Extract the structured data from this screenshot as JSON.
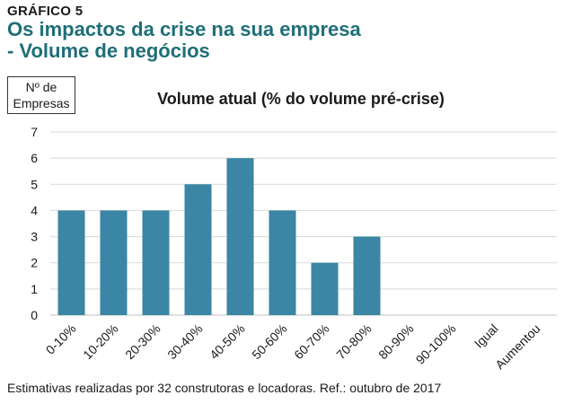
{
  "header": {
    "kicker": "GRÁFICO 5",
    "title_line1": "Os impactos da crise na sua empresa",
    "title_line2": "- Volume de negócios"
  },
  "colors": {
    "bar": "#3a86a4",
    "title": "#1e6e78",
    "grid": "#d9d9d9"
  },
  "chart_data": {
    "type": "bar",
    "title": "Volume atual (% do volume pré-crise)",
    "ylabel_line1": "Nº de",
    "ylabel_line2": "Empresas",
    "categories": [
      "0-10%",
      "10-20%",
      "20-30%",
      "30-40%",
      "40-50%",
      "50-60%",
      "60-70%",
      "70-80%",
      "80-90%",
      "90-100%",
      "Igual",
      "Aumentou"
    ],
    "values": [
      4,
      4,
      4,
      5,
      6,
      4,
      2,
      3,
      0,
      0,
      0,
      0
    ],
    "ylim": [
      0,
      7
    ],
    "yticks": [
      "0",
      "1",
      "2",
      "3",
      "4",
      "5",
      "6",
      "7"
    ],
    "grid": true
  },
  "footnote": "Estimativas realizadas por 32 construtoras e locadoras. Ref.: outubro de 2017"
}
